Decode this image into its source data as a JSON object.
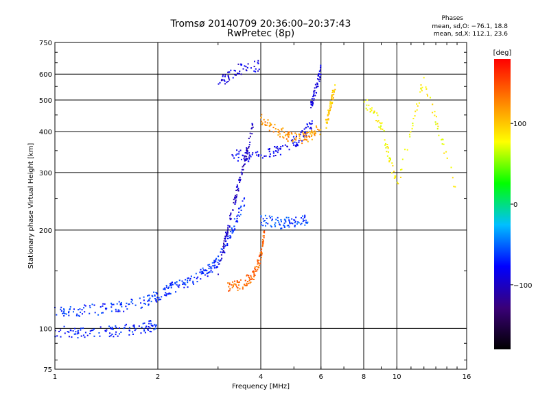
{
  "header": {
    "title_line1": "Tromsø 20140709 20:36:00–20:37:43",
    "title_line2": "RwPretec (8p)",
    "phases_title": "Phases",
    "phases_o": "mean, sd,O: −76.1, 18.8",
    "phases_x": "mean, sd,X: 112.1, 23.6"
  },
  "chart_data": {
    "type": "scatter",
    "xlabel": "Frequency [MHz]",
    "ylabel": "Stationary phase Virtual Height [km]",
    "xscale": "log",
    "yscale": "log",
    "xlim": [
      1,
      16
    ],
    "ylim": [
      75,
      750
    ],
    "xticks": [
      1,
      2,
      4,
      6,
      8,
      10,
      16
    ],
    "xtick_labels": [
      "1",
      "2",
      "4",
      "6",
      "8",
      "10",
      "16"
    ],
    "yticks": [
      75,
      100,
      200,
      300,
      400,
      500,
      600,
      750
    ],
    "ytick_labels": [
      "75",
      "100",
      "200",
      "300",
      "400",
      "500",
      "600",
      "750"
    ],
    "grid": true,
    "colorbar": {
      "label": "[deg]",
      "range": [
        -180,
        180
      ],
      "ticks": [
        100,
        0,
        -100
      ],
      "tick_labels": [
        "100",
        "0",
        "−100"
      ],
      "colors": [
        "#000000",
        "#3a0078",
        "#0000ff",
        "#00bfff",
        "#00ff00",
        "#ffff00",
        "#ff8000",
        "#ff0000"
      ]
    },
    "traces": [
      {
        "x": [
          1.0,
          1.2,
          1.5,
          1.8,
          2.0,
          2.2,
          2.5,
          2.8,
          3.0,
          3.3,
          3.6
        ],
        "y": [
          112,
          113,
          116,
          120,
          126,
          133,
          140,
          150,
          160,
          200,
          250
        ],
        "phase": -65
      },
      {
        "x": [
          1.0,
          1.2,
          1.5,
          1.8,
          2.0
        ],
        "y": [
          98,
          97,
          98,
          100,
          103
        ],
        "phase": -70
      },
      {
        "x": [
          3.0,
          3.2,
          3.4,
          3.6,
          3.8
        ],
        "y": [
          150,
          200,
          260,
          330,
          420
        ],
        "phase": -100
      },
      {
        "x": [
          3.3,
          3.8,
          4.5,
          5.2,
          5.7
        ],
        "y": [
          340,
          335,
          350,
          380,
          430
        ],
        "phase": -85
      },
      {
        "x": [
          3.2,
          3.5,
          3.8,
          4.0,
          4.1
        ],
        "y": [
          133,
          136,
          145,
          165,
          200
        ],
        "phase": 140
      },
      {
        "x": [
          4.0,
          4.5,
          5.0,
          5.5,
          6.0
        ],
        "y": [
          440,
          400,
          380,
          385,
          410
        ],
        "phase": 120
      },
      {
        "x": [
          5.6,
          5.8,
          6.0
        ],
        "y": [
          480,
          540,
          620
        ],
        "phase": -90
      },
      {
        "x": [
          6.2,
          6.4,
          6.6
        ],
        "y": [
          420,
          480,
          560
        ],
        "phase": 100
      },
      {
        "x": [
          4.0,
          4.5,
          5.0,
          5.5
        ],
        "y": [
          215,
          210,
          212,
          215
        ],
        "phase": -60
      },
      {
        "x": [
          3.0,
          3.4,
          4.0
        ],
        "y": [
          560,
          620,
          640
        ],
        "phase": -90
      },
      {
        "x": [
          8.0,
          9.0,
          10.0,
          12.0,
          15.0
        ],
        "y": [
          500,
          420,
          270,
          580,
          260
        ],
        "phase": 80
      }
    ]
  }
}
